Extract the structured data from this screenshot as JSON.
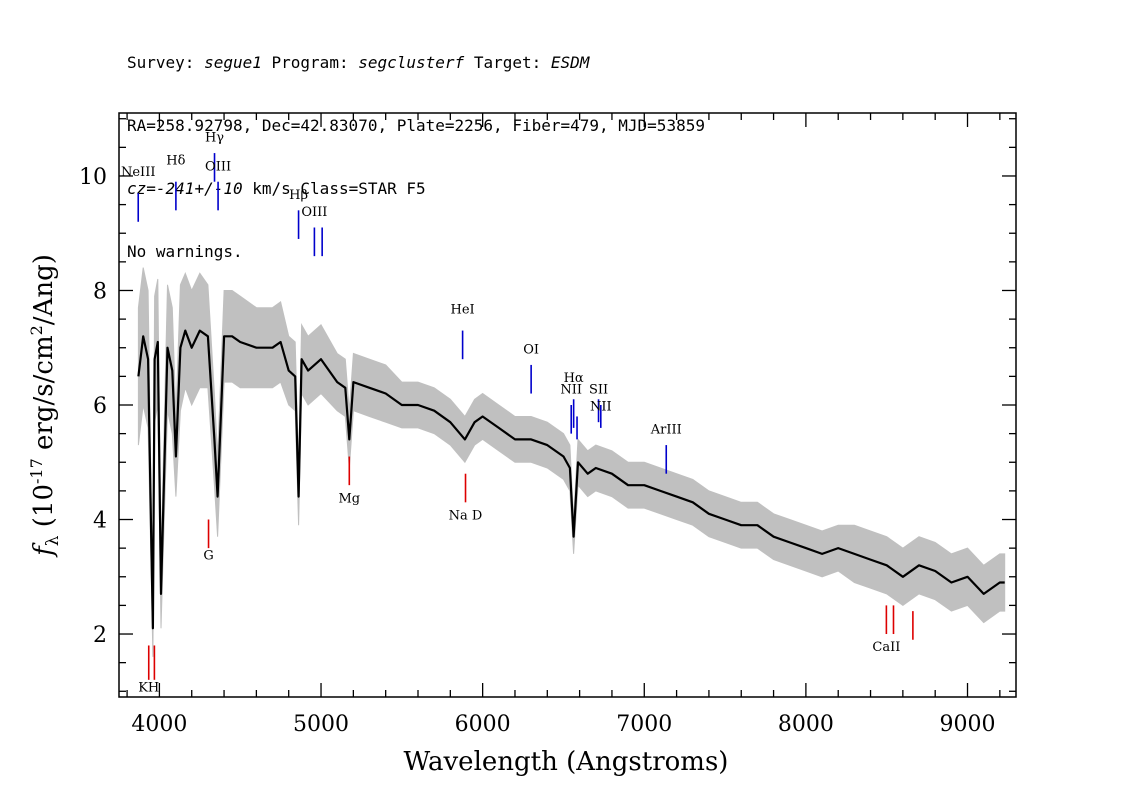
{
  "header": {
    "line1": {
      "survey_label": "Survey:",
      "survey": "segue1",
      "program_label": "Program:",
      "program": "segclusterf",
      "target_label": "Target:",
      "target": "ESDM"
    },
    "line2": "RA=258.92798, Dec=42.83070, Plate=2256, Fiber=479, MJD=53859",
    "line3": {
      "cz_label": "cz=",
      "cz": "-241+/-10",
      "rest": "km/s Class=STAR F5"
    },
    "line4": "No warnings."
  },
  "chart_data": {
    "type": "line",
    "xlabel": "Wavelength (Angstroms)",
    "ylabel": "f_λ (10^-17 erg/s/cm^2/Ang)",
    "xlim": [
      3750,
      9300
    ],
    "ylim": [
      0.9,
      11.1
    ],
    "x_ticks": [
      4000,
      5000,
      6000,
      7000,
      8000,
      9000
    ],
    "y_ticks": [
      2,
      4,
      6,
      8,
      10
    ],
    "x_minor_step": 200,
    "y_minor_step": 0.5,
    "colors": {
      "flux": "#000000",
      "noise": "#c0c0c0",
      "emission": "#0000cc",
      "absorption": "#dd0000"
    },
    "series": [
      {
        "role": "flux",
        "x": [
          3870,
          3900,
          3930,
          3950,
          3960,
          3970,
          3990,
          4010,
          4050,
          4080,
          4102,
          4130,
          4160,
          4200,
          4250,
          4300,
          4340,
          4360,
          4400,
          4450,
          4500,
          4600,
          4700,
          4750,
          4800,
          4840,
          4861,
          4880,
          4920,
          5000,
          5100,
          5150,
          5175,
          5200,
          5300,
          5400,
          5500,
          5600,
          5700,
          5800,
          5890,
          5950,
          6000,
          6100,
          6200,
          6300,
          6400,
          6500,
          6540,
          6563,
          6590,
          6650,
          6700,
          6800,
          6900,
          7000,
          7100,
          7200,
          7300,
          7400,
          7500,
          7600,
          7700,
          7800,
          7900,
          8000,
          8100,
          8200,
          8300,
          8400,
          8500,
          8600,
          8700,
          8800,
          8900,
          9000,
          9100,
          9200,
          9230
        ],
        "y": [
          6.5,
          7.2,
          6.8,
          3.6,
          2.1,
          6.8,
          7.1,
          2.7,
          7.0,
          6.6,
          5.1,
          7.0,
          7.3,
          7.0,
          7.3,
          7.2,
          5.4,
          4.4,
          7.2,
          7.2,
          7.1,
          7.0,
          7.0,
          7.1,
          6.6,
          6.5,
          4.4,
          6.8,
          6.6,
          6.8,
          6.4,
          6.3,
          5.4,
          6.4,
          6.3,
          6.2,
          6.0,
          6.0,
          5.9,
          5.7,
          5.4,
          5.7,
          5.8,
          5.6,
          5.4,
          5.4,
          5.3,
          5.1,
          4.9,
          3.7,
          5.0,
          4.8,
          4.9,
          4.8,
          4.6,
          4.6,
          4.5,
          4.4,
          4.3,
          4.1,
          4.0,
          3.9,
          3.9,
          3.7,
          3.6,
          3.5,
          3.4,
          3.5,
          3.4,
          3.3,
          3.2,
          3.0,
          3.2,
          3.1,
          2.9,
          3.0,
          2.7,
          2.9,
          2.9
        ]
      }
    ],
    "noise_halfwidth": [
      1.2,
      1.2,
      1.2,
      0.6,
      0.5,
      1.1,
      1.1,
      0.6,
      1.1,
      1.1,
      0.7,
      1.1,
      1.0,
      1.0,
      1.0,
      0.9,
      0.8,
      0.7,
      0.8,
      0.8,
      0.8,
      0.7,
      0.7,
      0.7,
      0.6,
      0.6,
      0.5,
      0.6,
      0.6,
      0.6,
      0.5,
      0.5,
      0.5,
      0.5,
      0.5,
      0.5,
      0.4,
      0.4,
      0.4,
      0.4,
      0.4,
      0.4,
      0.4,
      0.4,
      0.4,
      0.4,
      0.4,
      0.4,
      0.4,
      0.3,
      0.4,
      0.4,
      0.4,
      0.4,
      0.4,
      0.4,
      0.4,
      0.4,
      0.4,
      0.4,
      0.4,
      0.4,
      0.4,
      0.4,
      0.4,
      0.4,
      0.4,
      0.4,
      0.5,
      0.5,
      0.5,
      0.5,
      0.5,
      0.5,
      0.5,
      0.5,
      0.5,
      0.5,
      0.5
    ],
    "emission_lines": [
      {
        "name": "NeIII",
        "x": 3869,
        "y0": 9.2,
        "y1": 9.7,
        "label_y": 10.0
      },
      {
        "name": "Hδ",
        "x": 4102,
        "y0": 9.4,
        "y1": 9.9,
        "label_y": 10.2
      },
      {
        "name": "Hγ",
        "x": 4341,
        "y0": 9.9,
        "y1": 10.4,
        "label_y": 10.6
      },
      {
        "name": "OIII",
        "x": 4363,
        "y0": 9.4,
        "y1": 9.9,
        "label_y": 10.1
      },
      {
        "name": "Hβ",
        "x": 4861,
        "y0": 8.9,
        "y1": 9.4,
        "label_y": 9.6
      },
      {
        "name": "OIII",
        "x": 4959,
        "y0": 8.6,
        "y1": 9.1,
        "label_y": 9.3
      },
      {
        "name": "",
        "x": 5007,
        "y0": 8.6,
        "y1": 9.1,
        "label_y": 9.3
      },
      {
        "name": "HeI",
        "x": 5876,
        "y0": 6.8,
        "y1": 7.3,
        "label_y": 7.6
      },
      {
        "name": "OI",
        "x": 6300,
        "y0": 6.2,
        "y1": 6.7,
        "label_y": 6.9
      },
      {
        "name": "NII",
        "x": 6548,
        "y0": 5.5,
        "y1": 6.0,
        "label_y": 6.2
      },
      {
        "name": "Hα",
        "x": 6563,
        "y0": 5.6,
        "y1": 6.1,
        "label_y": 6.4
      },
      {
        "name": "",
        "x": 6584,
        "y0": 5.4,
        "y1": 5.8,
        "label_y": 5.9
      },
      {
        "name": "SII",
        "x": 6717,
        "y0": 5.7,
        "y1": 6.1,
        "label_y": 6.2
      },
      {
        "name": "NII",
        "x": 6731,
        "y0": 5.6,
        "y1": 6.0,
        "label_y": 5.9
      },
      {
        "name": "ArIII",
        "x": 7136,
        "y0": 4.8,
        "y1": 5.3,
        "label_y": 5.5
      }
    ],
    "absorption_lines": [
      {
        "name": "KH",
        "x": 3934,
        "y0": 1.2,
        "y1": 1.8,
        "label_y": 1.0
      },
      {
        "name": "",
        "x": 3969,
        "y0": 1.2,
        "y1": 1.8,
        "label_y": 1.0
      },
      {
        "name": "G",
        "x": 4304,
        "y0": 3.5,
        "y1": 4.0,
        "label_y": 3.3
      },
      {
        "name": "Mg",
        "x": 5175,
        "y0": 4.6,
        "y1": 5.1,
        "label_y": 4.3
      },
      {
        "name": "Na D",
        "x": 5894,
        "y0": 4.3,
        "y1": 4.8,
        "label_y": 4.0
      },
      {
        "name": "CaII",
        "x": 8498,
        "y0": 2.0,
        "y1": 2.5,
        "label_y": 1.7
      },
      {
        "name": "",
        "x": 8542,
        "y0": 2.0,
        "y1": 2.5,
        "label_y": 1.7
      },
      {
        "name": "",
        "x": 8662,
        "y0": 1.9,
        "y1": 2.4,
        "label_y": 1.7
      }
    ]
  }
}
